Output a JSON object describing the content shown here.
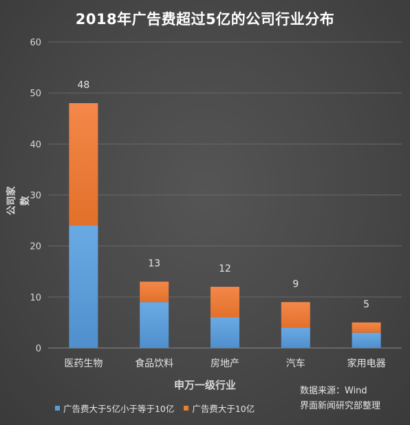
{
  "chart_data": {
    "type": "bar",
    "stacked": true,
    "title": "2018年广告费超过5亿的公司行业分布",
    "xlabel": "申万一级行业",
    "ylabel": "公司家数",
    "ylim": [
      0,
      60
    ],
    "yticks": [
      "0",
      "10",
      "20",
      "30",
      "40",
      "50",
      "60"
    ],
    "grid": true,
    "legend_position": "bottom-left",
    "categories": [
      "医药生物",
      "食品饮料",
      "房地产",
      "汽车",
      "家用电器"
    ],
    "totals": [
      "48",
      "13",
      "12",
      "9",
      "5"
    ],
    "series": [
      {
        "name": "广告费大于5亿小于等于10亿",
        "values": [
          24,
          9,
          6,
          4,
          3
        ],
        "color": "#5b9bd5"
      },
      {
        "name": "广告费大于10亿",
        "values": [
          24,
          4,
          6,
          5,
          2
        ],
        "color": "#ed7d31"
      }
    ]
  },
  "source": {
    "line1": "数据来源：Wind",
    "line2": "界面新闻研究部整理"
  }
}
